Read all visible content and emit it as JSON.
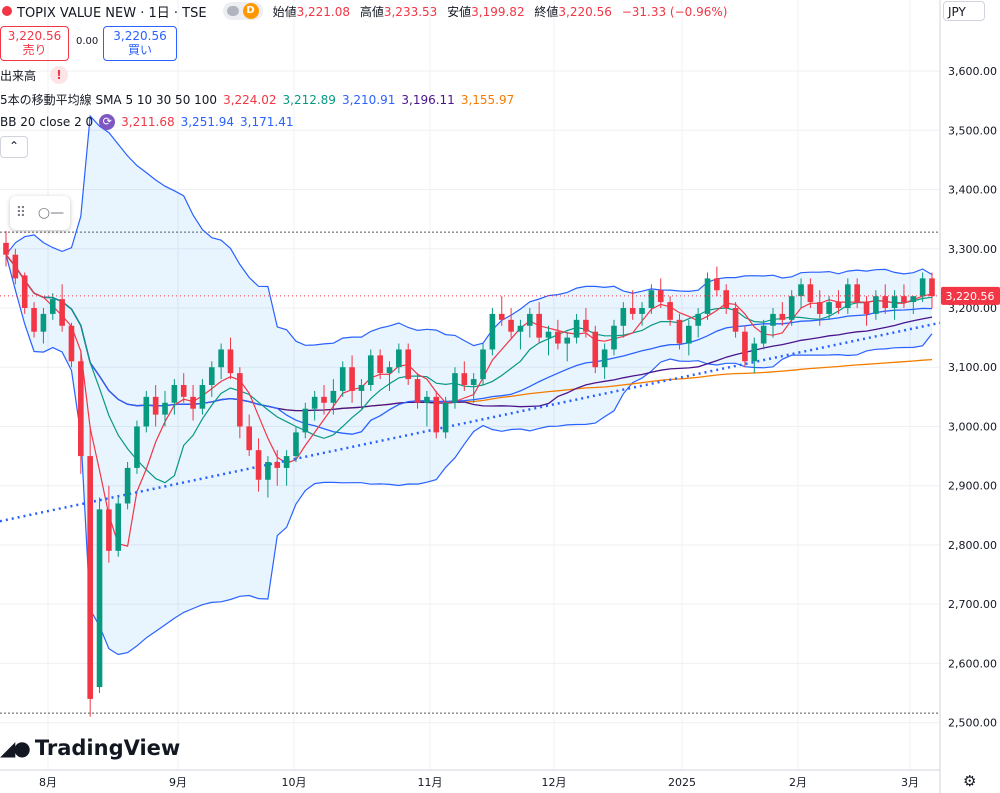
{
  "header": {
    "symbol_title": "TOPIX VALUE NEW · 1日 · TSE",
    "badge_letter": "D",
    "ohlc": [
      {
        "label": "始値",
        "value": "3,221.08"
      },
      {
        "label": "高値",
        "value": "3,233.53"
      },
      {
        "label": "安値",
        "value": "3,199.82"
      },
      {
        "label": "終値",
        "value": "3,220.56"
      }
    ],
    "change": "−31.33 (−0.96%)"
  },
  "trade": {
    "sell_price": "3,220.56",
    "sell_label": "売り",
    "spread": "0.00",
    "buy_price": "3,220.56",
    "buy_label": "買い"
  },
  "indicators": {
    "volume_label": "出来高",
    "sma_title": "5本の移動平均線 SMA 5 10 30 50 100",
    "sma_values": [
      {
        "v": "3,224.02",
        "color": "#f23645"
      },
      {
        "v": "3,212.89",
        "color": "#089981"
      },
      {
        "v": "3,210.91",
        "color": "#2962ff"
      },
      {
        "v": "3,196.11",
        "color": "#4a148c"
      },
      {
        "v": "3,155.97",
        "color": "#f57c00"
      }
    ],
    "bb_title": "BB 20 close 2 0",
    "bb_values": [
      {
        "v": "3,211.68",
        "color": "#f23645"
      },
      {
        "v": "3,251.94",
        "color": "#2962ff"
      },
      {
        "v": "3,171.41",
        "color": "#2962ff"
      }
    ]
  },
  "currency": "JPY",
  "brand": "TradingView",
  "icons": {
    "collapse": "chevron-up-icon",
    "drag": "drag-handle-icon",
    "line_tool": "line-tool-icon",
    "settings": "gear-icon",
    "status": "red-dot-icon"
  },
  "chart_data": {
    "type": "candlestick",
    "y_ticks": [
      "2,500.00",
      "2,600.00",
      "2,700.00",
      "2,800.00",
      "2,900.00",
      "3,000.00",
      "3,100.00",
      "3,200.00",
      "3,300.00",
      "3,400.00",
      "3,500.00",
      "3,600.00"
    ],
    "ylim": [
      2420,
      3720
    ],
    "x_labels": [
      "8月",
      "9月",
      "10月",
      "11月",
      "12月",
      "2025",
      "2月",
      "3月"
    ],
    "last_price_label": "3,220.56",
    "last_price": 3220.56,
    "dotted_levels": [
      3328,
      2516
    ],
    "candles": [
      [
        3310,
        3330,
        3270,
        3290
      ],
      [
        3290,
        3300,
        3240,
        3250
      ],
      [
        3255,
        3260,
        3190,
        3200
      ],
      [
        3200,
        3210,
        3150,
        3160
      ],
      [
        3160,
        3200,
        3140,
        3190
      ],
      [
        3190,
        3225,
        3180,
        3215
      ],
      [
        3215,
        3240,
        3160,
        3170
      ],
      [
        3170,
        3175,
        3100,
        3110
      ],
      [
        3110,
        3125,
        2920,
        2950
      ],
      [
        2950,
        3000,
        2510,
        2540
      ],
      [
        2560,
        2880,
        2550,
        2860
      ],
      [
        2860,
        2900,
        2770,
        2790
      ],
      [
        2790,
        2880,
        2780,
        2870
      ],
      [
        2870,
        2940,
        2860,
        2930
      ],
      [
        2930,
        3010,
        2920,
        3000
      ],
      [
        3000,
        3060,
        2990,
        3050
      ],
      [
        3050,
        3070,
        3000,
        3020
      ],
      [
        3020,
        3060,
        3000,
        3040
      ],
      [
        3040,
        3080,
        3020,
        3070
      ],
      [
        3070,
        3090,
        3040,
        3050
      ],
      [
        3050,
        3070,
        3010,
        3030
      ],
      [
        3030,
        3080,
        3020,
        3070
      ],
      [
        3070,
        3110,
        3050,
        3100
      ],
      [
        3100,
        3140,
        3080,
        3130
      ],
      [
        3130,
        3150,
        3080,
        3090
      ],
      [
        3090,
        3100,
        2980,
        3000
      ],
      [
        3000,
        3020,
        2950,
        2960
      ],
      [
        2960,
        2980,
        2890,
        2910
      ],
      [
        2910,
        2950,
        2880,
        2940
      ],
      [
        2940,
        2960,
        2900,
        2930
      ],
      [
        2930,
        2960,
        2900,
        2950
      ],
      [
        2950,
        3000,
        2940,
        2990
      ],
      [
        2990,
        3040,
        2980,
        3030
      ],
      [
        3030,
        3060,
        3010,
        3050
      ],
      [
        3050,
        3070,
        3020,
        3040
      ],
      [
        3040,
        3080,
        3020,
        3060
      ],
      [
        3060,
        3110,
        3050,
        3100
      ],
      [
        3100,
        3120,
        3040,
        3060
      ],
      [
        3060,
        3080,
        3030,
        3070
      ],
      [
        3070,
        3130,
        3060,
        3120
      ],
      [
        3120,
        3130,
        3080,
        3090
      ],
      [
        3090,
        3110,
        3060,
        3100
      ],
      [
        3100,
        3140,
        3090,
        3130
      ],
      [
        3130,
        3140,
        3070,
        3080
      ],
      [
        3080,
        3090,
        3030,
        3040
      ],
      [
        3040,
        3060,
        3000,
        3050
      ],
      [
        3050,
        3060,
        2980,
        2990
      ],
      [
        2990,
        3050,
        2980,
        3040
      ],
      [
        3040,
        3100,
        3030,
        3090
      ],
      [
        3090,
        3110,
        3060,
        3070
      ],
      [
        3070,
        3090,
        3040,
        3080
      ],
      [
        3080,
        3140,
        3070,
        3130
      ],
      [
        3130,
        3200,
        3120,
        3190
      ],
      [
        3190,
        3220,
        3170,
        3180
      ],
      [
        3180,
        3200,
        3150,
        3160
      ],
      [
        3160,
        3180,
        3130,
        3170
      ],
      [
        3170,
        3200,
        3150,
        3190
      ],
      [
        3190,
        3210,
        3140,
        3150
      ],
      [
        3150,
        3170,
        3120,
        3160
      ],
      [
        3160,
        3180,
        3130,
        3140
      ],
      [
        3140,
        3160,
        3110,
        3150
      ],
      [
        3150,
        3190,
        3140,
        3180
      ],
      [
        3180,
        3200,
        3150,
        3160
      ],
      [
        3160,
        3170,
        3090,
        3100
      ],
      [
        3100,
        3140,
        3080,
        3130
      ],
      [
        3130,
        3180,
        3120,
        3170
      ],
      [
        3170,
        3210,
        3150,
        3200
      ],
      [
        3200,
        3230,
        3180,
        3190
      ],
      [
        3190,
        3210,
        3170,
        3200
      ],
      [
        3200,
        3240,
        3190,
        3230
      ],
      [
        3230,
        3250,
        3200,
        3210
      ],
      [
        3210,
        3220,
        3170,
        3180
      ],
      [
        3180,
        3190,
        3130,
        3140
      ],
      [
        3140,
        3180,
        3120,
        3170
      ],
      [
        3170,
        3200,
        3150,
        3190
      ],
      [
        3190,
        3260,
        3180,
        3250
      ],
      [
        3250,
        3270,
        3220,
        3230
      ],
      [
        3230,
        3240,
        3190,
        3200
      ],
      [
        3200,
        3210,
        3150,
        3160
      ],
      [
        3160,
        3170,
        3100,
        3110
      ],
      [
        3110,
        3150,
        3090,
        3140
      ],
      [
        3140,
        3180,
        3130,
        3170
      ],
      [
        3170,
        3200,
        3150,
        3190
      ],
      [
        3190,
        3210,
        3170,
        3180
      ],
      [
        3180,
        3230,
        3170,
        3220
      ],
      [
        3220,
        3250,
        3200,
        3240
      ],
      [
        3240,
        3250,
        3200,
        3210
      ],
      [
        3210,
        3230,
        3170,
        3190
      ],
      [
        3190,
        3220,
        3180,
        3210
      ],
      [
        3210,
        3230,
        3190,
        3200
      ],
      [
        3200,
        3250,
        3190,
        3240
      ],
      [
        3240,
        3250,
        3200,
        3210
      ],
      [
        3210,
        3220,
        3170,
        3190
      ],
      [
        3190,
        3230,
        3180,
        3220
      ],
      [
        3220,
        3240,
        3190,
        3200
      ],
      [
        3200,
        3230,
        3180,
        3220
      ],
      [
        3220,
        3240,
        3200,
        3210
      ],
      [
        3210,
        3220,
        3190,
        3220
      ],
      [
        3220,
        3260,
        3210,
        3250
      ],
      [
        3250,
        3260,
        3200,
        3220
      ]
    ]
  }
}
